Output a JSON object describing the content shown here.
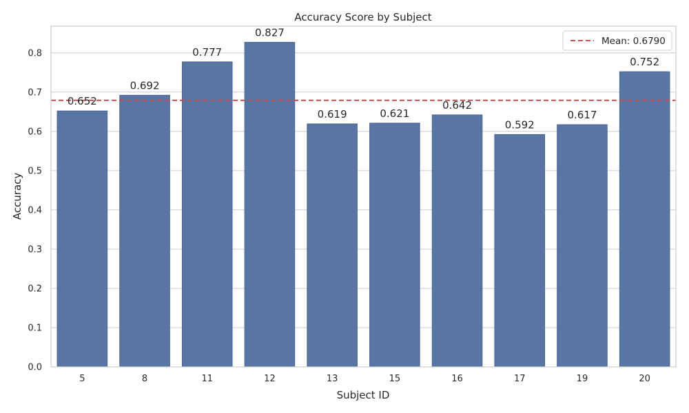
{
  "chart_data": {
    "type": "bar",
    "title": "Accuracy Score by Subject",
    "xlabel": "Subject ID",
    "ylabel": "Accuracy",
    "categories": [
      "5",
      "8",
      "11",
      "12",
      "13",
      "15",
      "16",
      "17",
      "19",
      "20"
    ],
    "values": [
      0.652,
      0.692,
      0.777,
      0.827,
      0.619,
      0.621,
      0.642,
      0.592,
      0.617,
      0.752
    ],
    "data_labels": [
      "0.652",
      "0.692",
      "0.777",
      "0.827",
      "0.619",
      "0.621",
      "0.642",
      "0.592",
      "0.617",
      "0.752"
    ],
    "ylim": [
      0,
      0.868
    ],
    "yticks": [
      0.0,
      0.1,
      0.2,
      0.3,
      0.4,
      0.5,
      0.6,
      0.7,
      0.8
    ],
    "ytick_labels": [
      "0.0",
      "0.1",
      "0.2",
      "0.3",
      "0.4",
      "0.5",
      "0.6",
      "0.7",
      "0.8"
    ],
    "grid": true,
    "mean_line": {
      "value": 0.679,
      "label": "Mean: 0.6790",
      "style": "dashed"
    },
    "legend": {
      "placement": "top-right",
      "entries": [
        "Mean: 0.6790"
      ]
    },
    "colors": {
      "bar": "#5875a4",
      "bar_edge": "#4a6594",
      "mean_line": "#c44e52",
      "grid": "#cccccc",
      "axes": "#cccccc",
      "text": "#262626"
    }
  }
}
